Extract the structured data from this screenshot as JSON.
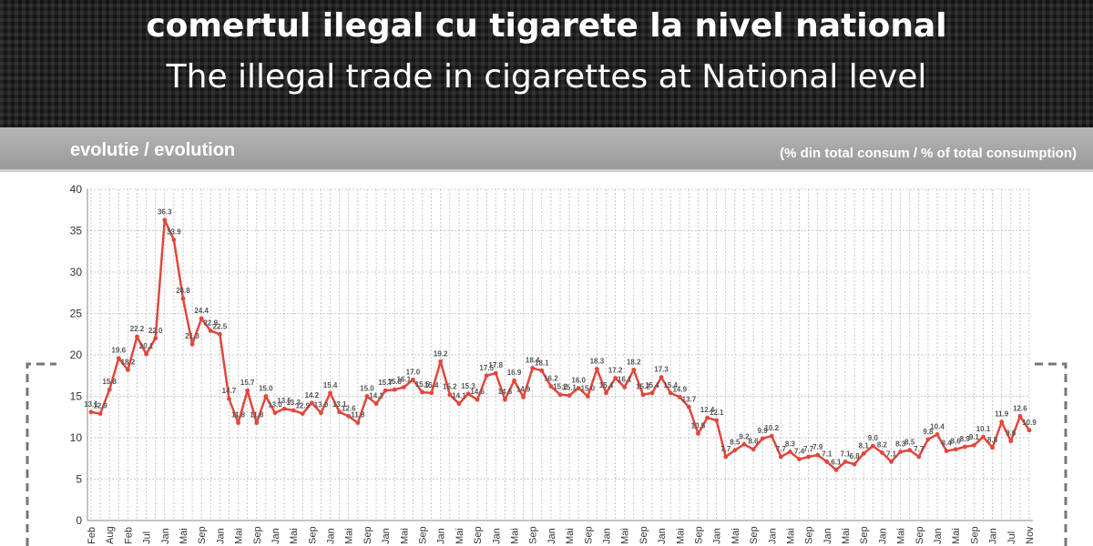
{
  "chart_data": {
    "type": "line",
    "title": "comertul ilegal cu tigarete la nivel national",
    "subtitle": "The illegal trade in cigarettes at National level",
    "panel_title": "evolutie / evolution",
    "unit_note": "(% din total consum / % of total consumption)",
    "color": "#e2463c",
    "grid": true,
    "ylim": [
      0,
      40
    ],
    "yticks": [
      0,
      5,
      10,
      15,
      20,
      25,
      30,
      35,
      40
    ],
    "categories": [
      "Feb",
      null,
      "Aug",
      null,
      "Feb",
      null,
      "Jul",
      null,
      "Jan",
      null,
      "Mai",
      null,
      "Sep",
      null,
      "Jan",
      null,
      "Mai",
      null,
      "Sep",
      null,
      "Jan",
      null,
      "Mai",
      null,
      "Sep",
      null,
      "Jan",
      null,
      "Mai",
      null,
      "Sep",
      null,
      "Jan",
      null,
      "Mai",
      null,
      "Sep",
      null,
      "Jan",
      null,
      "Mai",
      null,
      "Sep",
      null,
      "Jan",
      null,
      "Mai",
      null,
      "Sep",
      null,
      "Jan",
      null,
      "Mai",
      null,
      "Sep",
      null,
      "Jan",
      null,
      "Mai",
      null,
      "Sep",
      null,
      "Jan",
      null,
      "Mai",
      null,
      "Sep",
      null,
      "Jan",
      null,
      "Mai",
      null,
      "Sep",
      null,
      "Jan",
      null,
      "Mai",
      null,
      "Sep",
      null,
      "Jan",
      null,
      "Mai",
      null,
      "Sep",
      null,
      "Jan",
      null,
      "Mai",
      null,
      "Sep",
      null,
      "Jan",
      null,
      "Mai",
      null,
      "Sep",
      null,
      "Jan",
      null,
      "Jul",
      null,
      "Nov"
    ],
    "values": [
      13.1,
      12.9,
      15.8,
      19.6,
      18.2,
      22.2,
      20.1,
      22.0,
      36.3,
      33.9,
      26.8,
      21.3,
      24.4,
      22.9,
      22.5,
      14.7,
      11.8,
      15.7,
      11.8,
      15.0,
      13.0,
      13.5,
      13.3,
      12.9,
      14.2,
      13.0,
      15.4,
      13.1,
      12.6,
      11.8,
      15.0,
      14.1,
      15.7,
      15.8,
      16.1,
      17.0,
      15.5,
      15.4,
      19.2,
      15.2,
      14.1,
      15.3,
      14.6,
      17.5,
      17.8,
      14.6,
      16.9,
      14.9,
      18.4,
      18.1,
      16.2,
      15.2,
      15.1,
      16.0,
      15.0,
      18.3,
      15.4,
      17.2,
      16.1,
      18.2,
      15.2,
      15.4,
      17.3,
      15.4,
      14.9,
      13.7,
      10.5,
      12.4,
      12.1,
      7.7,
      8.5,
      9.2,
      8.6,
      9.9,
      10.2,
      7.7,
      8.3,
      7.4,
      7.7,
      7.9,
      7.1,
      6.1,
      7.1,
      6.8,
      8.1,
      9.0,
      8.2,
      7.1,
      8.3,
      8.5,
      7.7,
      9.8,
      10.4,
      8.4,
      8.6,
      8.9,
      9.1,
      10.1,
      8.8,
      11.9,
      9.6,
      12.6,
      10.9
    ],
    "value_labels": [
      "13.1",
      "12.9",
      "15.8",
      "19.6",
      "18.2",
      "22.2",
      "20.1",
      "22.0",
      "36.3",
      "33.9",
      "26.8",
      "21.3",
      "24.4",
      "22.9",
      "22.5",
      "14.7",
      "11.8",
      "15.7",
      "11.8",
      "15.0",
      "13.0",
      "13.5",
      "13.3",
      "12.9",
      "14.2",
      "13.0",
      "15.4",
      "13.1",
      "12.6",
      "11.8",
      "15.0",
      "14.1",
      "15.7",
      "15.8",
      "16.1",
      "17.0",
      "15.5",
      "15.4",
      "19.2",
      "15.2",
      "14.1",
      "15.3",
      "14.6",
      "17.5",
      "17.8",
      "14.6",
      "16.9",
      "14.9",
      "18.4",
      "18.1",
      "16.2",
      "15.2",
      "15.1",
      "16.0",
      "15.0",
      "18.3",
      "15.4",
      "17.2",
      "16.1",
      "18.2",
      "15.2",
      "15.4",
      "17.3",
      "15.4",
      "14.9",
      "13.7",
      "10.5",
      "12.4",
      "12.1",
      "7.7",
      "8.5",
      "9.2",
      "8.6",
      "9.9",
      "10.2",
      "7.7",
      "8.3",
      "7.4",
      "7.7",
      "7.9",
      "7.1",
      "6.1",
      "7.1",
      "6.8",
      "8.1",
      "9.0",
      "8.2",
      "7.1",
      "8.3",
      "8.5",
      "7.7",
      "9.8",
      "10.4",
      "8.4",
      "8.6",
      "8.9",
      "9.1",
      "10.1",
      "8.8",
      "11.9",
      "9.6",
      "12.6",
      "10.9"
    ]
  }
}
